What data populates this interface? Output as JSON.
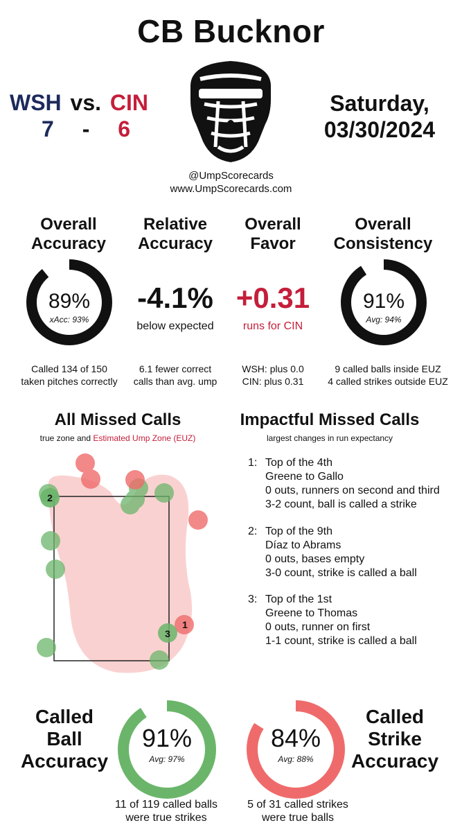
{
  "title": "CB Bucknor",
  "game": {
    "away_team": "WSH",
    "vs": "vs.",
    "home_team": "CIN",
    "away_score": "7",
    "dash": "-",
    "home_score": "6",
    "date_line1": "Saturday,",
    "date_line2": "03/30/2024"
  },
  "credits": {
    "handle": "@UmpScorecards",
    "site": "www.UmpScorecards.com"
  },
  "colors": {
    "away": "#1d2a5c",
    "home": "#c41e3a",
    "ball_green": "#6bb56b",
    "strike_red": "#ef6b6b",
    "zone_fill": "#f9cccc"
  },
  "stats": {
    "overall_accuracy": {
      "title_line1": "Overall",
      "title_line2": "Accuracy",
      "value": "89%",
      "sub": "xAcc: 93%",
      "fraction": 0.89,
      "note_line1": "Called 134 of 150",
      "note_line2": "taken pitches correctly"
    },
    "relative_accuracy": {
      "title_line1": "Relative",
      "title_line2": "Accuracy",
      "value": "-4.1%",
      "sub": "below expected",
      "note_line1": "6.1 fewer correct",
      "note_line2": "calls than avg. ump"
    },
    "overall_favor": {
      "title_line1": "Overall",
      "title_line2": "Favor",
      "value": "+0.31",
      "sub": "runs for CIN",
      "note_line1": "WSH: plus 0.0",
      "note_line2": "CIN: plus 0.31"
    },
    "overall_consistency": {
      "title_line1": "Overall",
      "title_line2": "Consistency",
      "value": "91%",
      "sub": "Avg: 94%",
      "fraction": 0.91,
      "note_line1": "9 called balls inside EUZ",
      "note_line2": "4 called strikes outside EUZ"
    }
  },
  "missed_calls": {
    "title": "All Missed Calls",
    "subtitle_a": "true zone and ",
    "subtitle_b": "Estimated Ump Zone (EUZ)",
    "markers": [
      {
        "label": "1",
        "type": "strike"
      },
      {
        "label": "2",
        "type": "ball"
      },
      {
        "label": "3",
        "type": "ball"
      }
    ]
  },
  "impactful": {
    "title": "Impactful Missed Calls",
    "subtitle": "largest changes in run expectancy",
    "items": [
      {
        "num": "1:",
        "l1": "Top of the 4th",
        "l2": "Greene to Gallo",
        "l3": "0 outs, runners on second and third",
        "l4": "3-2 count, ball is called a strike"
      },
      {
        "num": "2:",
        "l1": "Top of the 9th",
        "l2": "Díaz to Abrams",
        "l3": "0 outs, bases empty",
        "l4": "3-0 count, strike is called a ball"
      },
      {
        "num": "3:",
        "l1": "Top of the 1st",
        "l2": "Greene to Thomas",
        "l3": "0 outs, runner on first",
        "l4": "1-1 count, strike is called a ball"
      }
    ]
  },
  "called_ball": {
    "title_line1": "Called",
    "title_line2": "Ball",
    "title_line3": "Accuracy",
    "value": "91%",
    "sub": "Avg: 97%",
    "fraction": 0.91,
    "note_line1": "11 of 119 called balls",
    "note_line2": "were true strikes"
  },
  "called_strike": {
    "title_line1": "Called",
    "title_line2": "Strike",
    "title_line3": "Accuracy",
    "value": "84%",
    "sub": "Avg: 88%",
    "fraction": 0.84,
    "note_line1": "5 of 31 called strikes",
    "note_line2": "were true balls"
  }
}
